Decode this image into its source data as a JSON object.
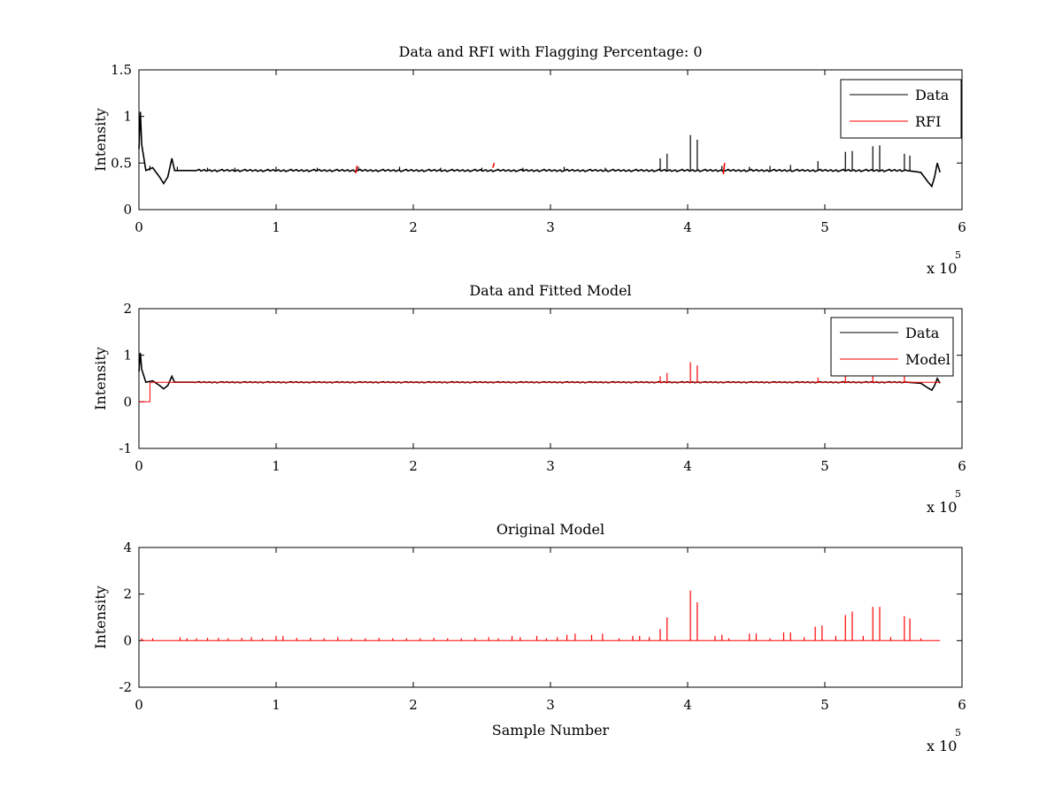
{
  "chart_data": [
    {
      "type": "line",
      "title": "Data and RFI with Flagging Percentage: 0",
      "xlabel": "",
      "ylabel": "Intensity",
      "xlim": [
        0,
        6
      ],
      "ylim": [
        0,
        1.5
      ],
      "x_ticks": [
        "0",
        "1",
        "2",
        "3",
        "4",
        "5",
        "6"
      ],
      "y_ticks": [
        "0",
        "0.5",
        "1",
        "1.5"
      ],
      "x_multiplier": "x 10",
      "x_multiplier_exponent": "5",
      "legend": {
        "position": "top-right",
        "entries": [
          "Data",
          "RFI"
        ]
      },
      "grid": false,
      "series": [
        {
          "name": "Data",
          "color": "#000000",
          "baseline": 0.42,
          "points": [
            [
              0,
              0.65
            ],
            [
              0.01,
              1.05
            ],
            [
              0.02,
              0.7
            ],
            [
              0.05,
              0.42
            ],
            [
              0.1,
              0.45
            ],
            [
              0.15,
              0.35
            ],
            [
              0.18,
              0.28
            ],
            [
              0.21,
              0.35
            ],
            [
              0.24,
              0.55
            ],
            [
              0.26,
              0.42
            ],
            [
              0.4,
              0.42
            ],
            [
              5.6,
              0.42
            ],
            [
              5.7,
              0.4
            ],
            [
              5.75,
              0.3
            ],
            [
              5.78,
              0.25
            ],
            [
              5.8,
              0.35
            ],
            [
              5.82,
              0.5
            ],
            [
              5.84,
              0.4
            ]
          ],
          "spikes": [
            [
              0.08,
              0.47
            ],
            [
              0.28,
              0.46
            ],
            [
              0.5,
              0.45
            ],
            [
              0.7,
              0.45
            ],
            [
              1.0,
              0.46
            ],
            [
              1.3,
              0.45
            ],
            [
              1.6,
              0.46
            ],
            [
              1.9,
              0.46
            ],
            [
              2.2,
              0.45
            ],
            [
              2.5,
              0.45
            ],
            [
              2.8,
              0.45
            ],
            [
              3.1,
              0.46
            ],
            [
              3.4,
              0.45
            ],
            [
              3.8,
              0.55
            ],
            [
              3.85,
              0.6
            ],
            [
              4.02,
              0.8
            ],
            [
              4.07,
              0.75
            ],
            [
              4.25,
              0.47
            ],
            [
              4.45,
              0.46
            ],
            [
              4.6,
              0.47
            ],
            [
              4.75,
              0.48
            ],
            [
              4.95,
              0.52
            ],
            [
              5.15,
              0.62
            ],
            [
              5.2,
              0.63
            ],
            [
              5.35,
              0.68
            ],
            [
              5.4,
              0.69
            ],
            [
              5.58,
              0.6
            ],
            [
              5.62,
              0.58
            ]
          ]
        },
        {
          "name": "RFI",
          "color": "#ff0000",
          "segments": [
            [
              1.58,
              0.39,
              0.47
            ],
            [
              2.58,
              0.45,
              0.5
            ],
            [
              4.26,
              0.38,
              0.5
            ]
          ]
        }
      ]
    },
    {
      "type": "line",
      "title": "Data and Fitted Model",
      "xlabel": "",
      "ylabel": "Intensity",
      "xlim": [
        0,
        6
      ],
      "ylim": [
        -1,
        2
      ],
      "x_ticks": [
        "0",
        "1",
        "2",
        "3",
        "4",
        "5",
        "6"
      ],
      "y_ticks": [
        "-1",
        "0",
        "1",
        "2"
      ],
      "x_multiplier": "x 10",
      "x_multiplier_exponent": "5",
      "legend": {
        "position": "top-right",
        "entries": [
          "Data",
          "Model"
        ]
      },
      "grid": false,
      "series": [
        {
          "name": "Data",
          "color": "#000000",
          "baseline": 0.42,
          "points": [
            [
              0,
              0.65
            ],
            [
              0.01,
              1.05
            ],
            [
              0.02,
              0.7
            ],
            [
              0.05,
              0.42
            ],
            [
              0.1,
              0.45
            ],
            [
              0.15,
              0.35
            ],
            [
              0.18,
              0.28
            ],
            [
              0.21,
              0.35
            ],
            [
              0.24,
              0.55
            ],
            [
              0.26,
              0.42
            ],
            [
              0.4,
              0.42
            ],
            [
              5.6,
              0.42
            ],
            [
              5.7,
              0.4
            ],
            [
              5.75,
              0.3
            ],
            [
              5.78,
              0.25
            ],
            [
              5.8,
              0.35
            ],
            [
              5.82,
              0.5
            ],
            [
              5.84,
              0.4
            ]
          ]
        },
        {
          "name": "Model",
          "color": "#ff0000",
          "baseline": 0.42,
          "points": [
            [
              0,
              0.0
            ],
            [
              0.08,
              0.0
            ],
            [
              0.08,
              0.42
            ],
            [
              5.84,
              0.42
            ]
          ],
          "spikes": [
            [
              3.8,
              0.55
            ],
            [
              3.85,
              0.62
            ],
            [
              4.02,
              0.85
            ],
            [
              4.07,
              0.78
            ],
            [
              4.95,
              0.52
            ],
            [
              5.15,
              0.6
            ],
            [
              5.35,
              0.6
            ],
            [
              5.58,
              0.58
            ]
          ]
        }
      ]
    },
    {
      "type": "line",
      "title": "Original Model",
      "xlabel": "Sample Number",
      "ylabel": "Intensity",
      "xlim": [
        0,
        6
      ],
      "ylim": [
        -2,
        4
      ],
      "x_ticks": [
        "0",
        "1",
        "2",
        "3",
        "4",
        "5",
        "6"
      ],
      "y_ticks": [
        "-2",
        "0",
        "2",
        "4"
      ],
      "x_multiplier": "x 10",
      "x_multiplier_exponent": "5",
      "grid": false,
      "series": [
        {
          "color": "#ff0000",
          "baseline": 0.0,
          "points": [
            [
              0.02,
              0.0
            ],
            [
              5.84,
              0.0
            ]
          ],
          "spikes": [
            [
              0.02,
              0.1
            ],
            [
              0.1,
              0.1
            ],
            [
              0.3,
              0.15
            ],
            [
              0.35,
              0.1
            ],
            [
              0.42,
              0.1
            ],
            [
              0.5,
              0.12
            ],
            [
              0.58,
              0.12
            ],
            [
              0.65,
              0.1
            ],
            [
              0.75,
              0.12
            ],
            [
              0.82,
              0.15
            ],
            [
              0.9,
              0.1
            ],
            [
              1.0,
              0.2
            ],
            [
              1.05,
              0.2
            ],
            [
              1.15,
              0.12
            ],
            [
              1.25,
              0.12
            ],
            [
              1.35,
              0.1
            ],
            [
              1.45,
              0.15
            ],
            [
              1.55,
              0.1
            ],
            [
              1.65,
              0.1
            ],
            [
              1.75,
              0.12
            ],
            [
              1.85,
              0.1
            ],
            [
              1.95,
              0.1
            ],
            [
              2.05,
              0.1
            ],
            [
              2.15,
              0.12
            ],
            [
              2.25,
              0.1
            ],
            [
              2.35,
              0.1
            ],
            [
              2.45,
              0.12
            ],
            [
              2.55,
              0.15
            ],
            [
              2.62,
              0.1
            ],
            [
              2.72,
              0.2
            ],
            [
              2.78,
              0.15
            ],
            [
              2.9,
              0.2
            ],
            [
              2.97,
              0.1
            ],
            [
              3.05,
              0.15
            ],
            [
              3.12,
              0.25
            ],
            [
              3.18,
              0.3
            ],
            [
              3.3,
              0.25
            ],
            [
              3.38,
              0.3
            ],
            [
              3.5,
              0.1
            ],
            [
              3.6,
              0.2
            ],
            [
              3.65,
              0.2
            ],
            [
              3.72,
              0.15
            ],
            [
              3.8,
              0.5
            ],
            [
              3.85,
              1.0
            ],
            [
              4.02,
              2.15
            ],
            [
              4.07,
              1.65
            ],
            [
              4.2,
              0.2
            ],
            [
              4.25,
              0.25
            ],
            [
              4.3,
              0.1
            ],
            [
              4.45,
              0.3
            ],
            [
              4.5,
              0.3
            ],
            [
              4.6,
              0.1
            ],
            [
              4.7,
              0.35
            ],
            [
              4.75,
              0.35
            ],
            [
              4.85,
              0.15
            ],
            [
              4.93,
              0.6
            ],
            [
              4.98,
              0.65
            ],
            [
              5.08,
              0.2
            ],
            [
              5.15,
              1.1
            ],
            [
              5.2,
              1.25
            ],
            [
              5.28,
              0.2
            ],
            [
              5.35,
              1.45
            ],
            [
              5.4,
              1.45
            ],
            [
              5.48,
              0.15
            ],
            [
              5.58,
              1.05
            ],
            [
              5.62,
              0.95
            ],
            [
              5.7,
              0.1
            ]
          ]
        }
      ]
    }
  ]
}
